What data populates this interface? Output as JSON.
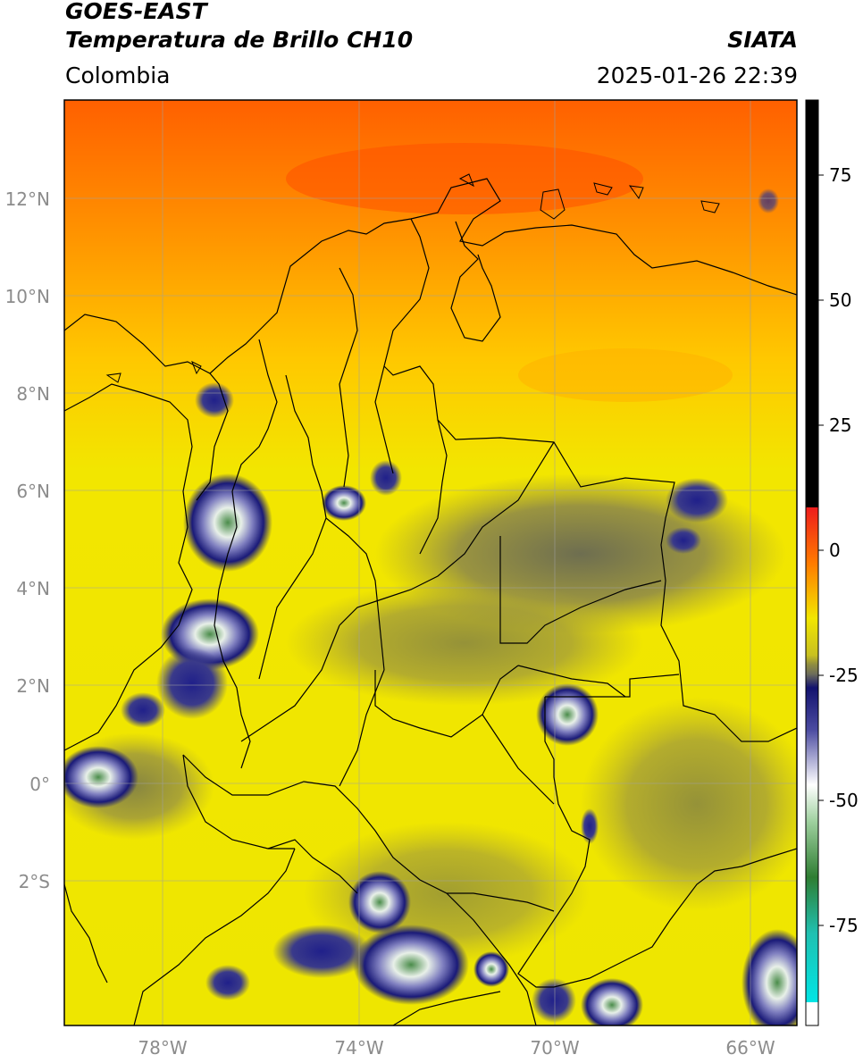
{
  "header": {
    "satellite": "GOES-EAST",
    "product": "Temperatura de Brillo CH10",
    "brand": "SIATA",
    "region": "Colombia",
    "timestamp": "2025-01-26 22:39"
  },
  "axes": {
    "lat_labels": [
      "12°N",
      "10°N",
      "8°N",
      "6°N",
      "4°N",
      "2°N",
      "0°",
      "2°S"
    ],
    "lon_labels": [
      "78°W",
      "74°W",
      "70°W",
      "66°W"
    ]
  },
  "colorbar": {
    "ticks": [
      "75",
      "50",
      "25",
      "0",
      "-25",
      "-50",
      "-75"
    ],
    "tick_values": [
      75,
      50,
      25,
      0,
      -25,
      -50,
      -75
    ],
    "range": [
      -95,
      90
    ],
    "colors": {
      "black": "#000000",
      "red": "#ee1c1c",
      "orange": "#ff7a00",
      "yellow": "#f2e600",
      "olive": "#8f8c40",
      "gray": "#6e6e5a",
      "navy": "#12126e",
      "white": "#ffffff",
      "green": "#2e7d32",
      "teal": "#20c0b0",
      "cyan": "#00e5e5"
    }
  }
}
